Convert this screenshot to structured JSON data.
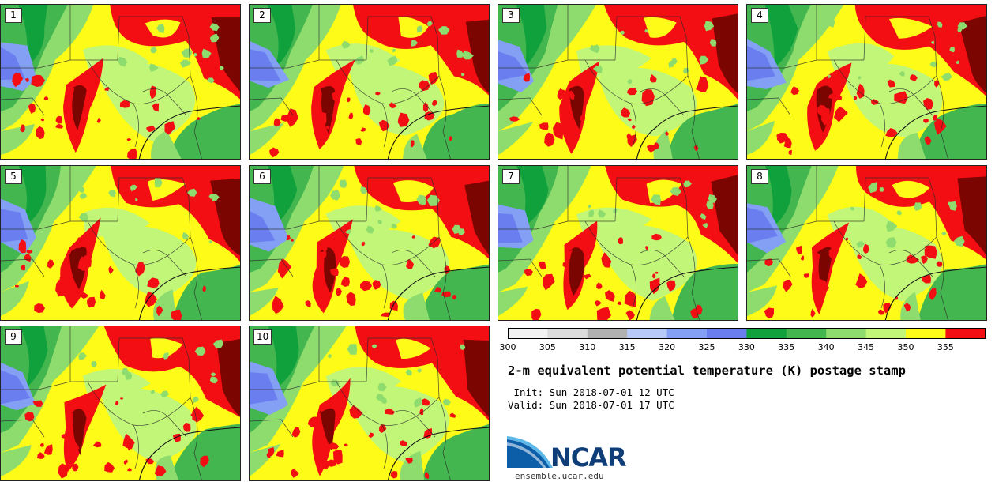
{
  "colors": {
    "levels": [
      "#f2f2f2",
      "#dcdcdc",
      "#b1b1b1",
      "#b7caf7",
      "#84a0f4",
      "#6a7ef0",
      "#11a13c",
      "#43b64f",
      "#8edc6d",
      "#c1f678",
      "#fdfb17",
      "#f20e12",
      "#7b0500"
    ],
    "ocean": "#8edc6d",
    "border": "#2a2a2a"
  },
  "members": [
    {
      "label": "1"
    },
    {
      "label": "2"
    },
    {
      "label": "3"
    },
    {
      "label": "4"
    },
    {
      "label": "5"
    },
    {
      "label": "6"
    },
    {
      "label": "7"
    },
    {
      "label": "8"
    },
    {
      "label": "9"
    },
    {
      "label": "10"
    }
  ],
  "colorbar": {
    "ticks": [
      "300",
      "305",
      "310",
      "315",
      "320",
      "325",
      "330",
      "335",
      "340",
      "345",
      "350",
      "355"
    ]
  },
  "title": "2-m equivalent potential temperature (K) postage stamp",
  "init_line": " Init: Sun 2018-07-01 12 UTC",
  "valid_line": "Valid: Sun 2018-07-01 17 UTC",
  "logo": {
    "text": "NCAR",
    "url": "ensemble.ucar.edu"
  }
}
